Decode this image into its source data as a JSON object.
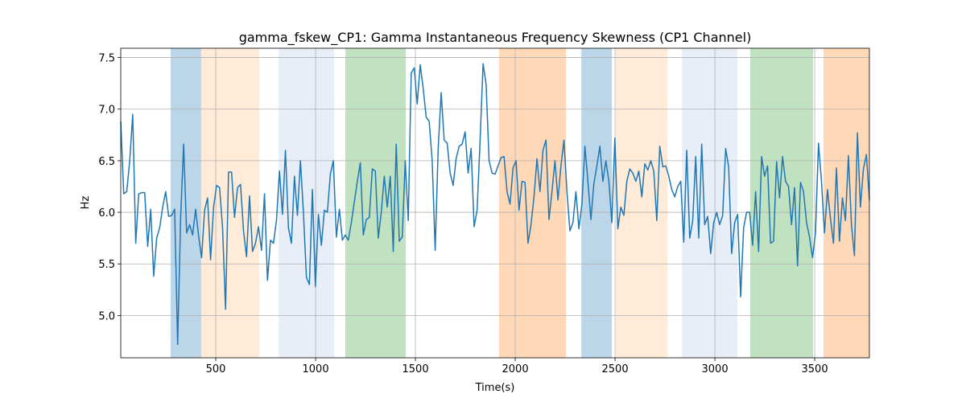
{
  "chart_data": {
    "type": "line",
    "title": "gamma_fskew_CP1: Gamma Instantaneous Frequency Skewness (CP1 Channel)",
    "xlabel": "Time(s)",
    "ylabel": "Hz",
    "color": "#1f77b4",
    "grid": true,
    "xlim": [
      24,
      3774
    ],
    "ylim": [
      4.59,
      7.59
    ],
    "xticks": [
      500,
      1000,
      1500,
      2000,
      2500,
      3000,
      3500
    ],
    "yticks": [
      {
        "value": 5,
        "label": "5.0"
      },
      5.5,
      {
        "value": 6,
        "label": "6.0"
      },
      6.5,
      {
        "value": 7,
        "label": "7.0"
      },
      7.5
    ],
    "spans": [
      {
        "x0": 274,
        "x1": 427,
        "color": "#bcd6e9"
      },
      {
        "x0": 427,
        "x1": 718,
        "color": "#ffebd7"
      },
      {
        "x0": 815,
        "x1": 1093,
        "color": "#e7eef8"
      },
      {
        "x0": 1149,
        "x1": 1452,
        "color": "#c0e2c0"
      },
      {
        "x0": 1919,
        "x1": 2254,
        "color": "#ffd8b7"
      },
      {
        "x0": 2331,
        "x1": 2484,
        "color": "#bcd6e9"
      },
      {
        "x0": 2504,
        "x1": 2762,
        "color": "#ffebd7"
      },
      {
        "x0": 2835,
        "x1": 3113,
        "color": "#e7eef8"
      },
      {
        "x0": 3177,
        "x1": 3492,
        "color": "#c0e2c0"
      },
      {
        "x0": 3544,
        "x1": 3774,
        "color": "#ffd8b7"
      }
    ],
    "x": [
      24,
      39,
      54,
      69,
      84,
      99,
      114,
      129,
      144,
      159,
      174,
      189,
      204,
      219,
      234,
      249,
      264,
      279,
      294,
      309,
      324,
      339,
      354,
      369,
      384,
      399,
      414,
      429,
      444,
      459,
      474,
      489,
      504,
      519,
      534,
      549,
      564,
      579,
      594,
      609,
      624,
      639,
      654,
      669,
      684,
      699,
      714,
      729,
      744,
      759,
      774,
      789,
      804,
      819,
      834,
      849,
      864,
      879,
      894,
      909,
      924,
      939,
      954,
      969,
      984,
      999,
      1014,
      1029,
      1044,
      1059,
      1074,
      1089,
      1104,
      1119,
      1134,
      1149,
      1164,
      1179,
      1194,
      1209,
      1224,
      1239,
      1254,
      1269,
      1284,
      1299,
      1314,
      1329,
      1344,
      1359,
      1374,
      1389,
      1404,
      1419,
      1434,
      1449,
      1464,
      1479,
      1494,
      1509,
      1524,
      1539,
      1554,
      1569,
      1584,
      1599,
      1614,
      1629,
      1644,
      1659,
      1674,
      1689,
      1704,
      1719,
      1734,
      1749,
      1764,
      1779,
      1794,
      1809,
      1824,
      1839,
      1854,
      1869,
      1884,
      1899,
      1914,
      1929,
      1944,
      1959,
      1974,
      1989,
      2004,
      2019,
      2034,
      2049,
      2064,
      2079,
      2094,
      2109,
      2124,
      2139,
      2154,
      2169,
      2184,
      2199,
      2214,
      2229,
      2244,
      2259,
      2274,
      2289,
      2304,
      2319,
      2334,
      2349,
      2364,
      2379,
      2394,
      2409,
      2424,
      2439,
      2454,
      2469,
      2484,
      2499,
      2514,
      2529,
      2544,
      2559,
      2574,
      2589,
      2604,
      2619,
      2634,
      2649,
      2664,
      2679,
      2694,
      2709,
      2724,
      2739,
      2754,
      2769,
      2784,
      2799,
      2814,
      2829,
      2844,
      2859,
      2874,
      2889,
      2904,
      2919,
      2934,
      2949,
      2964,
      2979,
      2994,
      3009,
      3024,
      3039,
      3054,
      3069,
      3084,
      3099,
      3114,
      3129,
      3144,
      3159,
      3174,
      3189,
      3204,
      3219,
      3234,
      3249,
      3264,
      3279,
      3294,
      3309,
      3324,
      3339,
      3354,
      3369,
      3384,
      3399,
      3414,
      3429,
      3444,
      3459,
      3474,
      3489,
      3504,
      3519,
      3534,
      3549,
      3564,
      3579,
      3594,
      3609,
      3624,
      3639,
      3654,
      3669,
      3684,
      3699,
      3714,
      3729,
      3744,
      3759,
      3774
    ],
    "values": [
      6.88,
      6.18,
      6.2,
      6.5,
      6.95,
      5.7,
      6.18,
      6.19,
      6.19,
      5.67,
      6.03,
      5.38,
      5.75,
      5.85,
      6.05,
      6.2,
      5.96,
      5.97,
      6.03,
      4.72,
      5.95,
      6.66,
      5.8,
      5.88,
      5.78,
      6.03,
      5.77,
      5.56,
      6.02,
      6.14,
      5.54,
      6.05,
      6.26,
      6.24,
      5.85,
      5.06,
      6.39,
      6.39,
      5.95,
      6.24,
      6.27,
      5.82,
      5.57,
      6.16,
      5.62,
      5.7,
      5.86,
      5.63,
      6.18,
      5.34,
      5.73,
      5.7,
      5.92,
      6.4,
      5.98,
      6.6,
      5.85,
      5.7,
      6.35,
      5.97,
      6.5,
      6.0,
      5.37,
      5.3,
      6.22,
      5.28,
      5.98,
      5.68,
      6.02,
      6.0,
      6.37,
      6.5,
      5.76,
      6.03,
      5.73,
      5.78,
      5.73,
      5.9,
      6.1,
      6.3,
      6.48,
      5.78,
      5.93,
      5.95,
      6.42,
      6.4,
      5.75,
      6.0,
      6.35,
      6.05,
      6.35,
      5.62,
      6.66,
      5.72,
      5.76,
      6.5,
      5.92,
      7.35,
      7.4,
      7.05,
      7.43,
      7.2,
      6.92,
      6.88,
      6.5,
      5.63,
      6.62,
      7.16,
      6.7,
      6.67,
      6.38,
      6.26,
      6.52,
      6.64,
      6.66,
      6.78,
      6.38,
      6.62,
      5.86,
      6.02,
      6.7,
      7.44,
      7.24,
      6.5,
      6.38,
      6.37,
      6.45,
      6.53,
      6.54,
      6.2,
      6.08,
      6.43,
      6.5,
      6.02,
      6.3,
      6.29,
      5.7,
      5.88,
      6.15,
      6.52,
      6.2,
      6.6,
      6.7,
      5.93,
      6.2,
      6.5,
      6.12,
      6.45,
      6.7,
      6.2,
      5.82,
      5.9,
      6.2,
      5.84,
      6.08,
      6.64,
      6.3,
      5.93,
      6.28,
      6.45,
      6.64,
      6.3,
      6.5,
      6.3,
      5.9,
      6.72,
      5.84,
      6.05,
      5.97,
      6.3,
      6.42,
      6.38,
      6.3,
      6.4,
      6.15,
      6.47,
      6.41,
      6.5,
      6.4,
      5.92,
      6.64,
      6.44,
      6.45,
      6.35,
      6.22,
      6.15,
      6.25,
      6.3,
      5.71,
      6.6,
      5.75,
      5.92,
      6.54,
      5.75,
      6.66,
      5.88,
      5.96,
      5.6,
      5.9,
      6.0,
      5.88,
      5.97,
      6.62,
      6.44,
      5.6,
      5.9,
      5.98,
      5.18,
      5.85,
      6.0,
      6.0,
      5.68,
      6.2,
      5.62,
      6.54,
      6.35,
      6.45,
      5.7,
      5.72,
      6.49,
      6.14,
      6.54,
      6.3,
      6.25,
      5.88,
      6.24,
      5.48,
      6.29,
      6.2,
      5.9,
      5.76,
      5.56,
      5.8,
      6.67,
      6.3,
      5.8,
      6.22,
      5.94,
      5.7,
      6.43,
      5.72,
      6.14,
      5.92,
      6.55,
      5.88,
      5.58,
      6.77,
      6.05,
      6.42,
      6.56,
      6.12
    ]
  }
}
